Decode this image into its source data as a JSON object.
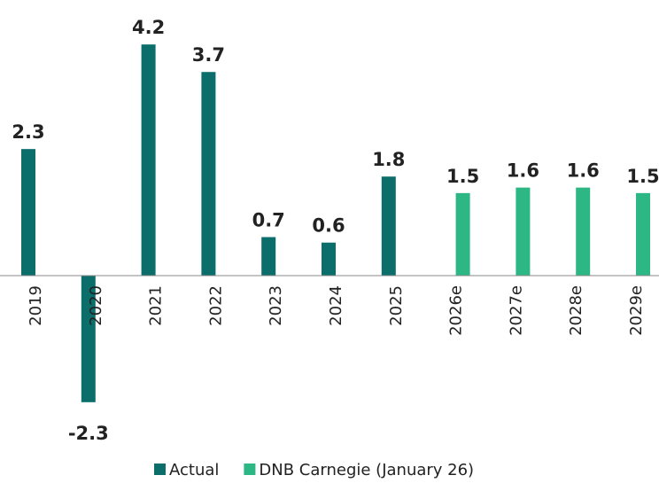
{
  "chart_data": {
    "type": "bar",
    "categories": [
      "2019",
      "2020",
      "2021",
      "2022",
      "2023",
      "2024",
      "2025",
      "2026e",
      "2027e",
      "2028e",
      "2029e"
    ],
    "series": [
      {
        "name": "Actual",
        "color": "#0b6e6b",
        "values": [
          2.3,
          -2.3,
          4.2,
          3.7,
          0.7,
          0.6,
          1.8,
          null,
          null,
          null,
          null
        ]
      },
      {
        "name": "DNB Carnegie (January 26)",
        "color": "#2db784",
        "values": [
          null,
          null,
          null,
          null,
          null,
          null,
          null,
          1.5,
          1.6,
          1.6,
          1.5
        ]
      }
    ],
    "legend": "bottom"
  }
}
